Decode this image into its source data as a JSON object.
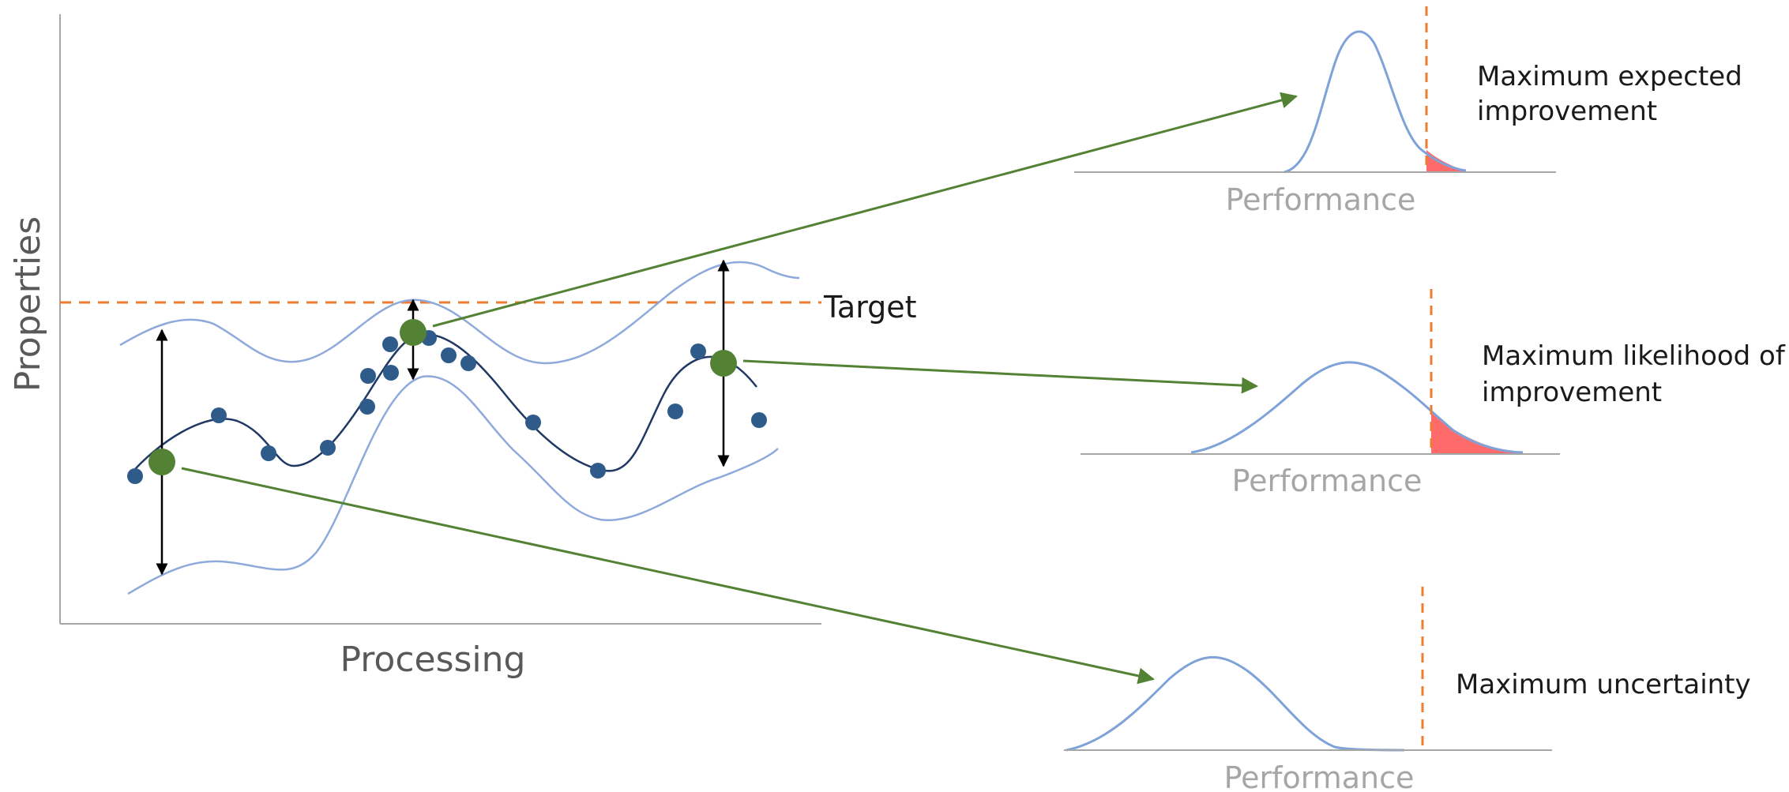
{
  "main_plot": {
    "y_axis_label": "Properties",
    "x_axis_label": "Processing",
    "target_label": "Target"
  },
  "panels": [
    {
      "title_line1": "Maximum expected",
      "title_line2": "improvement",
      "axis_label": "Performance"
    },
    {
      "title_line1": "Maximum likelihood of",
      "title_line2": "improvement",
      "axis_label": "Performance"
    },
    {
      "title_line1": "Maximum uncertainty",
      "title_line2": "",
      "axis_label": "Performance"
    }
  ],
  "colors": {
    "axis": "#a6a6a6",
    "mean_curve": "#1f3864",
    "confidence_band": "#8eaadb",
    "observations": "#2e5b8a",
    "candidates": "#548235",
    "arrows": "#548235",
    "target_line": "#ed7d31",
    "tail_fill": "#ff6b6b",
    "distribution": "#7fa3d8"
  },
  "icons": {
    "uncertainty_arrow": "double-headed-arrow-icon"
  }
}
